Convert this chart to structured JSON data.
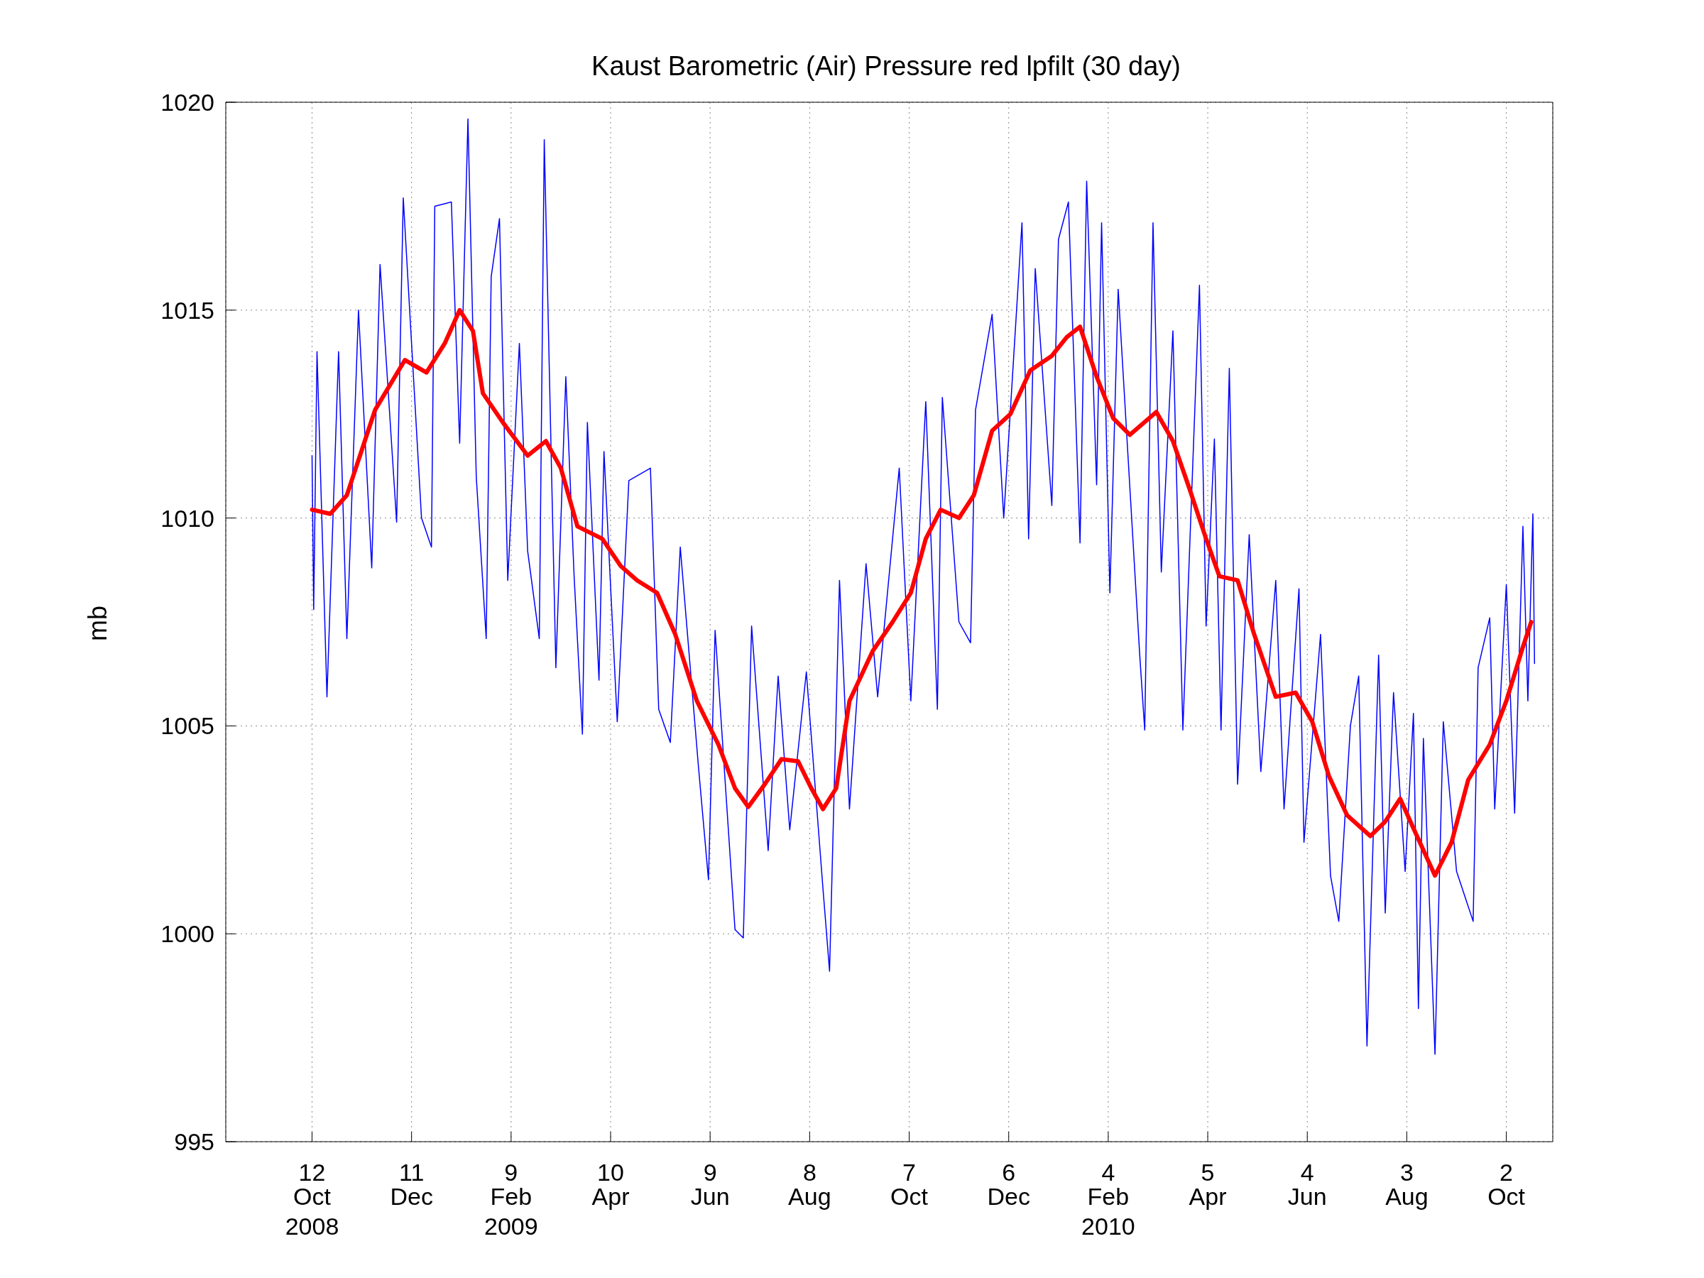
{
  "chart_data": {
    "type": "line",
    "title": "Kaust Barometric (Air) Pressure red lpfilt (30 day)",
    "ylabel": "mb",
    "xlim": [
      "2008-08-21",
      "2010-10-30"
    ],
    "xticks": [
      {
        "value": "2008-10-12",
        "label": "12\nOct\n2008"
      },
      {
        "value": "2008-12-11",
        "label": "11\nDec"
      },
      {
        "value": "2009-02-09",
        "label": "9\nFeb\n2009"
      },
      {
        "value": "2009-04-10",
        "label": "10\nApr"
      },
      {
        "value": "2009-06-09",
        "label": "9\nJun"
      },
      {
        "value": "2009-08-08",
        "label": "8\nAug"
      },
      {
        "value": "2009-10-07",
        "label": "7\nOct"
      },
      {
        "value": "2009-12-06",
        "label": "6\nDec"
      },
      {
        "value": "2010-02-04",
        "label": "4\nFeb\n2010"
      },
      {
        "value": "2010-04-05",
        "label": "5\nApr"
      },
      {
        "value": "2010-06-04",
        "label": "4\nJun"
      },
      {
        "value": "2010-08-03",
        "label": "3\nAug"
      },
      {
        "value": "2010-10-02",
        "label": "2\nOct"
      }
    ],
    "ylim": [
      995,
      1020
    ],
    "yticks": [
      995,
      1000,
      1005,
      1010,
      1015,
      1020
    ],
    "grid": true,
    "line_style": "solid",
    "marker": "none",
    "series": [
      {
        "color": "#0000ff",
        "x": [
          "2008-10-12",
          "2008-10-13",
          "2008-10-15",
          "2008-10-21",
          "2008-10-28",
          "2008-11-02",
          "2008-11-09",
          "2008-11-17",
          "2008-11-22",
          "2008-12-02",
          "2008-12-06",
          "2008-12-17",
          "2008-12-23",
          "2008-12-25",
          "2009-01-04",
          "2009-01-09",
          "2009-01-14",
          "2009-01-19",
          "2009-01-25",
          "2009-01-28",
          "2009-02-02",
          "2009-02-07",
          "2009-02-14",
          "2009-02-19",
          "2009-02-26",
          "2009-03-01",
          "2009-03-08",
          "2009-03-14",
          "2009-03-19",
          "2009-03-24",
          "2009-03-27",
          "2009-04-03",
          "2009-04-06",
          "2009-04-14",
          "2009-04-21",
          "2009-05-04",
          "2009-05-09",
          "2009-05-16",
          "2009-05-22",
          "2009-06-02",
          "2009-06-08",
          "2009-06-12",
          "2009-06-24",
          "2009-06-29",
          "2009-07-04",
          "2009-07-14",
          "2009-07-20",
          "2009-07-27",
          "2009-08-06",
          "2009-08-16",
          "2009-08-20",
          "2009-08-26",
          "2009-09-01",
          "2009-09-11",
          "2009-09-18",
          "2009-10-01",
          "2009-10-08",
          "2009-10-17",
          "2009-10-24",
          "2009-10-27",
          "2009-11-06",
          "2009-11-13",
          "2009-11-16",
          "2009-11-26",
          "2009-12-03",
          "2009-12-14",
          "2009-12-18",
          "2009-12-22",
          "2010-01-01",
          "2010-01-05",
          "2010-01-11",
          "2010-01-18",
          "2010-01-22",
          "2010-01-28",
          "2010-01-31",
          "2010-02-05",
          "2010-02-10",
          "2010-02-23",
          "2010-02-26",
          "2010-03-03",
          "2010-03-08",
          "2010-03-15",
          "2010-03-21",
          "2010-03-31",
          "2010-04-04",
          "2010-04-09",
          "2010-04-13",
          "2010-04-18",
          "2010-04-23",
          "2010-04-30",
          "2010-05-07",
          "2010-05-16",
          "2010-05-21",
          "2010-05-30",
          "2010-06-02",
          "2010-06-12",
          "2010-06-18",
          "2010-06-23",
          "2010-06-30",
          "2010-07-05",
          "2010-07-10",
          "2010-07-17",
          "2010-07-21",
          "2010-07-26",
          "2010-08-02",
          "2010-08-07",
          "2010-08-10",
          "2010-08-13",
          "2010-08-20",
          "2010-08-25",
          "2010-09-02",
          "2010-09-12",
          "2010-09-15",
          "2010-09-22",
          "2010-09-25",
          "2010-10-02",
          "2010-10-07",
          "2010-10-12",
          "2010-10-15",
          "2010-10-18",
          "2010-10-19"
        ],
        "values": [
          1011.5,
          1007.8,
          1014.0,
          1005.7,
          1014.0,
          1007.1,
          1015.0,
          1008.8,
          1016.1,
          1009.9,
          1017.7,
          1010.0,
          1009.3,
          1017.5,
          1017.6,
          1011.8,
          1019.6,
          1011.0,
          1007.1,
          1015.8,
          1017.2,
          1008.5,
          1014.2,
          1009.2,
          1007.1,
          1019.1,
          1006.4,
          1013.4,
          1008.6,
          1004.8,
          1012.3,
          1006.1,
          1011.6,
          1005.1,
          1010.9,
          1011.2,
          1005.4,
          1004.6,
          1009.3,
          1004.0,
          1001.3,
          1007.3,
          1000.1,
          999.9,
          1007.4,
          1002.0,
          1006.2,
          1002.5,
          1006.3,
          1001.1,
          999.1,
          1008.5,
          1003.0,
          1008.9,
          1005.7,
          1011.2,
          1005.6,
          1012.8,
          1005.4,
          1012.9,
          1007.5,
          1007.0,
          1012.6,
          1014.9,
          1010.0,
          1017.1,
          1009.5,
          1016.0,
          1010.3,
          1016.7,
          1017.6,
          1009.4,
          1018.1,
          1010.8,
          1017.1,
          1008.2,
          1015.5,
          1006.7,
          1004.9,
          1017.1,
          1008.7,
          1014.5,
          1004.9,
          1015.6,
          1007.4,
          1011.9,
          1004.9,
          1013.6,
          1003.6,
          1009.6,
          1003.9,
          1008.5,
          1003.0,
          1008.3,
          1002.2,
          1007.2,
          1001.4,
          1000.3,
          1005.0,
          1006.2,
          997.3,
          1006.7,
          1000.5,
          1005.8,
          1001.5,
          1005.3,
          998.2,
          1004.7,
          997.1,
          1005.1,
          1001.5,
          1000.3,
          1006.4,
          1007.6,
          1003.0,
          1008.4,
          1002.9,
          1009.8,
          1005.6,
          1010.1,
          1006.5
        ]
      },
      {
        "color": "#ff0000",
        "x": [
          "2008-10-12",
          "2008-10-23",
          "2008-11-02",
          "2008-11-19",
          "2008-12-07",
          "2008-12-20",
          "2008-12-31",
          "2009-01-09",
          "2009-01-17",
          "2009-01-23",
          "2009-02-04",
          "2009-02-19",
          "2009-03-02",
          "2009-03-11",
          "2009-03-21",
          "2009-04-05",
          "2009-04-16",
          "2009-04-26",
          "2009-05-08",
          "2009-05-19",
          "2009-06-01",
          "2009-06-14",
          "2009-06-24",
          "2009-07-02",
          "2009-07-12",
          "2009-07-22",
          "2009-08-01",
          "2009-08-09",
          "2009-08-16",
          "2009-08-24",
          "2009-09-01",
          "2009-09-15",
          "2009-09-27",
          "2009-10-08",
          "2009-10-17",
          "2009-10-26",
          "2009-11-06",
          "2009-11-15",
          "2009-11-26",
          "2009-12-07",
          "2009-12-19",
          "2010-01-01",
          "2010-01-10",
          "2010-01-18",
          "2010-01-28",
          "2010-02-07",
          "2010-02-17",
          "2010-03-05",
          "2010-03-15",
          "2010-03-25",
          "2010-04-04",
          "2010-04-12",
          "2010-04-23",
          "2010-05-03",
          "2010-05-16",
          "2010-05-28",
          "2010-06-07",
          "2010-06-17",
          "2010-06-28",
          "2010-07-12",
          "2010-07-21",
          "2010-07-30",
          "2010-08-08",
          "2010-08-20",
          "2010-08-30",
          "2010-09-09",
          "2010-09-22",
          "2010-10-02",
          "2010-10-12",
          "2010-10-17"
        ],
        "values": [
          1010.2,
          1010.1,
          1010.55,
          1012.6,
          1013.8,
          1013.5,
          1014.2,
          1015.0,
          1014.5,
          1013.0,
          1012.3,
          1011.5,
          1011.85,
          1011.2,
          1009.8,
          1009.5,
          1008.85,
          1008.5,
          1008.2,
          1007.2,
          1005.6,
          1004.55,
          1003.5,
          1003.05,
          1003.6,
          1004.2,
          1004.15,
          1003.5,
          1003.0,
          1003.5,
          1005.6,
          1006.8,
          1007.5,
          1008.2,
          1009.5,
          1010.2,
          1010.0,
          1010.55,
          1012.1,
          1012.5,
          1013.55,
          1013.9,
          1014.35,
          1014.6,
          1013.4,
          1012.4,
          1012.0,
          1012.55,
          1011.85,
          1010.7,
          1009.5,
          1008.6,
          1008.5,
          1007.2,
          1005.7,
          1005.8,
          1005.1,
          1003.8,
          1002.85,
          1002.35,
          1002.7,
          1003.25,
          1002.45,
          1001.4,
          1002.2,
          1003.7,
          1004.55,
          1005.6,
          1006.9,
          1007.5
        ]
      }
    ]
  }
}
